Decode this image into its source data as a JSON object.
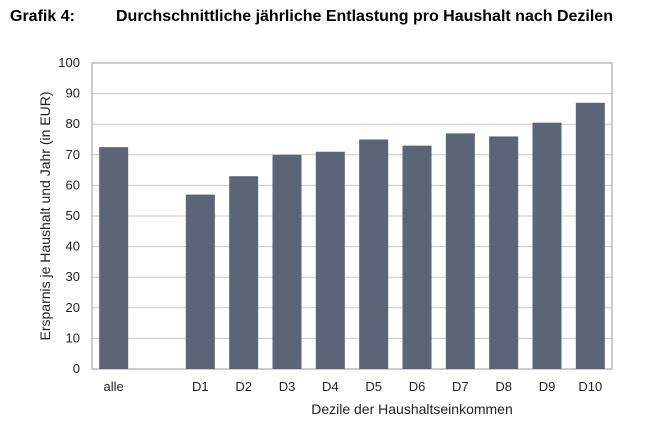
{
  "heading": {
    "figure_label": "Grafik 4:",
    "title": "Durchschnittliche jährliche Entlastung pro Haushalt nach Dezilen"
  },
  "chart_data": {
    "type": "bar",
    "title": "Durchschnittliche jährliche Entlastung pro Haushalt nach Dezilen",
    "categories": [
      "alle",
      "",
      "D1",
      "D2",
      "D3",
      "D4",
      "D5",
      "D6",
      "D7",
      "D8",
      "D9",
      "D10"
    ],
    "values": [
      72.5,
      null,
      57,
      63,
      70,
      71,
      75,
      73,
      77,
      76,
      80.5,
      87
    ],
    "xlabel": "Dezile der Haushaltseinkommen",
    "ylabel": "Ersparnis je Haushalt und Jahr (in EUR)",
    "ylim": [
      0,
      100
    ],
    "yticks": [
      0,
      10,
      20,
      30,
      40,
      50,
      60,
      70,
      80,
      90,
      100
    ],
    "grid": true,
    "legend": "none",
    "bar_color": "#5b6577",
    "grid_color": "#c8c8c8"
  }
}
